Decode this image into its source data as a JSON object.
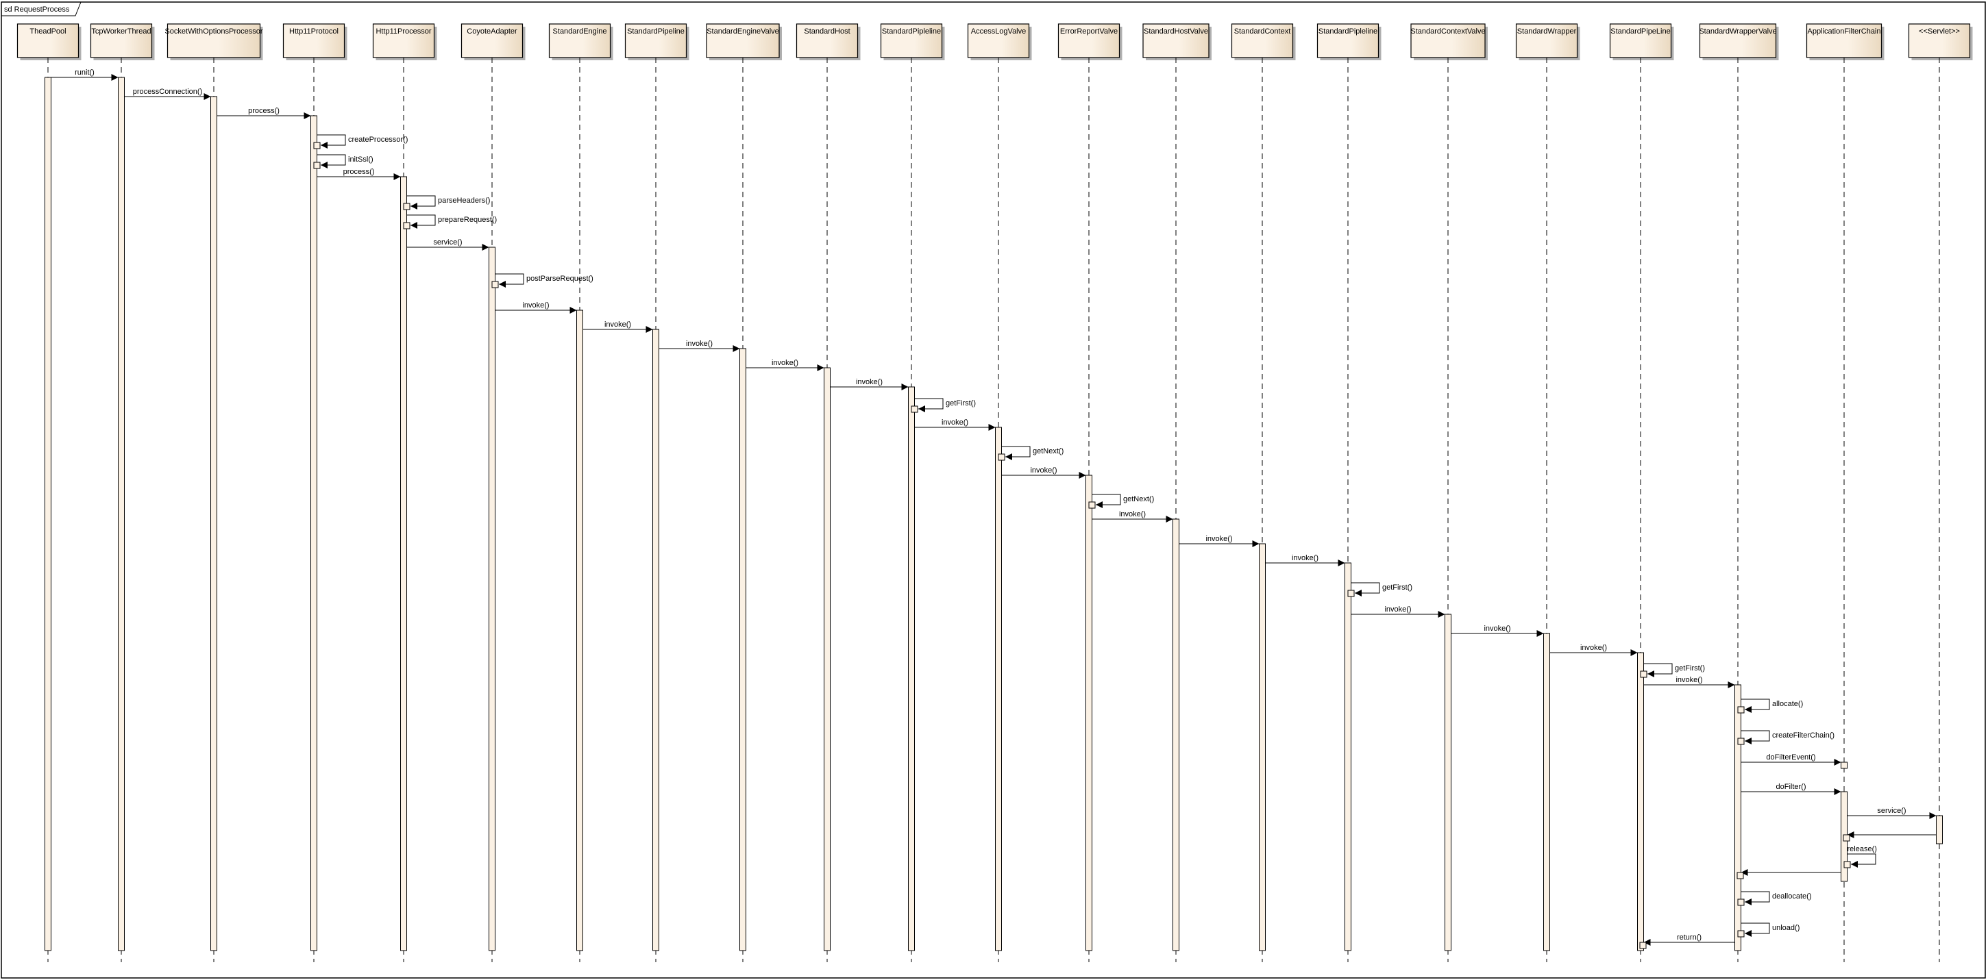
{
  "frame": {
    "label": "sd RequestProcess"
  },
  "colors": {
    "box_fill_light": "#fbf2e6",
    "box_fill_dark": "#ead9c0",
    "activation_fill": "#fbf1e4",
    "line": "#000000",
    "shadow": "#b0b0b0"
  },
  "lifelines": [
    "TheadPool",
    "TcpWorkerThread",
    "SocketWithOptionsProcessor",
    "Http11Protocol",
    "Http11Processor",
    "CoyoteAdapter",
    "StandardEngine",
    "StandardPipeline",
    "StandardEngineValve",
    "StandardHost",
    "StandardPipleline",
    "AccessLogValve",
    "ErrorReportValve",
    "StandardHostValve",
    "StandardContext",
    "StandardPipleline",
    "StandardContextValve",
    "StandardWrapper",
    "StandardPipeLine",
    "StandardWrapperValve",
    "ApplicationFilterChain",
    "<<Servlet>>"
  ],
  "messages": [
    {
      "from": 0,
      "to": 1,
      "label": "runit()"
    },
    {
      "from": 1,
      "to": 2,
      "label": "processConnection()"
    },
    {
      "from": 2,
      "to": 3,
      "label": "process()"
    },
    {
      "from": 3,
      "to": 3,
      "label": "createProcessor()"
    },
    {
      "from": 3,
      "to": 3,
      "label": "initSsl()"
    },
    {
      "from": 3,
      "to": 4,
      "label": "process()"
    },
    {
      "from": 4,
      "to": 4,
      "label": "parseHeaders()"
    },
    {
      "from": 4,
      "to": 4,
      "label": "prepareRequest()"
    },
    {
      "from": 4,
      "to": 5,
      "label": "service()"
    },
    {
      "from": 5,
      "to": 5,
      "label": "postParseRequest()"
    },
    {
      "from": 5,
      "to": 6,
      "label": "invoke()"
    },
    {
      "from": 6,
      "to": 7,
      "label": "invoke()"
    },
    {
      "from": 7,
      "to": 8,
      "label": "invoke()"
    },
    {
      "from": 8,
      "to": 9,
      "label": "invoke()"
    },
    {
      "from": 9,
      "to": 10,
      "label": "invoke()"
    },
    {
      "from": 10,
      "to": 10,
      "label": "getFirst()"
    },
    {
      "from": 10,
      "to": 11,
      "label": "invoke()"
    },
    {
      "from": 11,
      "to": 11,
      "label": "getNext()"
    },
    {
      "from": 11,
      "to": 12,
      "label": "invoke()"
    },
    {
      "from": 12,
      "to": 12,
      "label": "getNext()"
    },
    {
      "from": 12,
      "to": 13,
      "label": "invoke()"
    },
    {
      "from": 13,
      "to": 14,
      "label": "invoke()"
    },
    {
      "from": 14,
      "to": 15,
      "label": "invoke()"
    },
    {
      "from": 15,
      "to": 15,
      "label": "getFirst()"
    },
    {
      "from": 15,
      "to": 16,
      "label": "invoke()"
    },
    {
      "from": 16,
      "to": 17,
      "label": "invoke()"
    },
    {
      "from": 17,
      "to": 18,
      "label": "invoke()"
    },
    {
      "from": 18,
      "to": 18,
      "label": "getFirst()"
    },
    {
      "from": 18,
      "to": 19,
      "label": "invoke()"
    },
    {
      "from": 19,
      "to": 19,
      "label": "allocate()"
    },
    {
      "from": 19,
      "to": 19,
      "label": "createFilterChain()"
    },
    {
      "from": 19,
      "to": 20,
      "label": "doFilterEvent()"
    },
    {
      "from": 19,
      "to": 20,
      "label": "doFilter()"
    },
    {
      "from": 20,
      "to": 21,
      "label": "service()"
    },
    {
      "from": 21,
      "to": 20,
      "label": ""
    },
    {
      "from": 20,
      "to": 20,
      "label": "release()"
    },
    {
      "from": 20,
      "to": 19,
      "label": ""
    },
    {
      "from": 19,
      "to": 19,
      "label": "deallocate()"
    },
    {
      "from": 19,
      "to": 19,
      "label": "unload()"
    },
    {
      "from": 19,
      "to": 18,
      "label": "return()"
    }
  ]
}
